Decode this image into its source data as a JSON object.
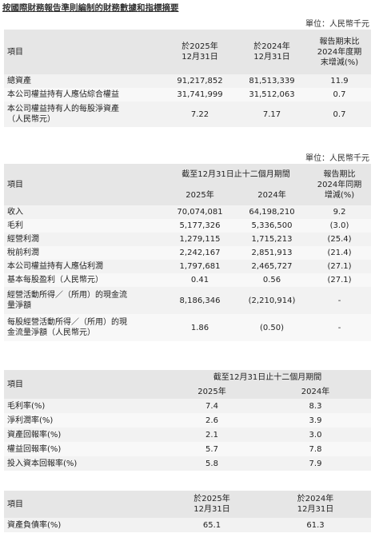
{
  "title": "按國際財務報告準則編制的財務數據和指標摘要",
  "table1": {
    "unit": "單位：人民幣千元",
    "headers": {
      "item": "項目",
      "col1_l1": "於2025年",
      "col1_l2": "12月31日",
      "col2_l1": "於2024年",
      "col2_l2": "12月31日",
      "col3_l1": "報告期末比",
      "col3_l2": "2024年度期",
      "col3_l3": "末增減(%)"
    },
    "rows": [
      {
        "label": "總資產",
        "v1": "91,217,852",
        "v2": "81,513,339",
        "v3": "11.9"
      },
      {
        "label": "本公司權益持有人應佔綜合權益",
        "v1": "31,741,999",
        "v2": "31,512,063",
        "v3": "0.7"
      },
      {
        "label_l1": "本公司權益持有人的每股淨資產",
        "label_l2": "（人民幣元）",
        "v1": "7.22",
        "v2": "7.17",
        "v3": "0.7"
      }
    ]
  },
  "table2": {
    "unit": "單位：人民幣千元",
    "headers": {
      "item": "項目",
      "period": "截至12月31日止十二個月期間",
      "y1": "2025年",
      "y2": "2024年",
      "chg_l1": "報告期比",
      "chg_l2": "2024年同期",
      "chg_l3": "增減(%)"
    },
    "rows": [
      {
        "label": "收入",
        "v1": "70,074,081",
        "v2": "64,198,210",
        "v3": "9.2"
      },
      {
        "label": "毛利",
        "v1": "5,177,326",
        "v2": "5,336,500",
        "v3": "(3.0)"
      },
      {
        "label": "經營利潤",
        "v1": "1,279,115",
        "v2": "1,715,213",
        "v3": "(25.4)"
      },
      {
        "label": "稅前利潤",
        "v1": "2,242,167",
        "v2": "2,851,913",
        "v3": "(21.4)"
      },
      {
        "label": "本公司權益持有人應佔利潤",
        "v1": "1,797,681",
        "v2": "2,465,727",
        "v3": "(27.1)"
      },
      {
        "label": "基本每股盈利（人民幣元）",
        "v1": "0.41",
        "v2": "0.56",
        "v3": "(27.1)"
      },
      {
        "label_l1": "經營活動所得／（所用）的現金流",
        "label_l2": "量淨額",
        "v1": "8,186,346",
        "v2": "(2,210,914)",
        "v3": "-"
      },
      {
        "label_l1": "每股經營活動所得／（所用）的現",
        "label_l2": "金流量淨額（人民幣元）",
        "v1": "1.86",
        "v2": "(0.50)",
        "v3": "-"
      }
    ]
  },
  "table3": {
    "headers": {
      "item": "項目",
      "period": "截至12月31日止十二個月期間",
      "y1": "2025年",
      "y2": "2024年"
    },
    "rows": [
      {
        "label": "毛利率(%)",
        "v1": "7.4",
        "v2": "8.3"
      },
      {
        "label": "淨利潤率(%)",
        "v1": "2.6",
        "v2": "3.9"
      },
      {
        "label": "資產回報率(%)",
        "v1": "2.1",
        "v2": "3.0"
      },
      {
        "label": "權益回報率(%)",
        "v1": "5.7",
        "v2": "7.8"
      },
      {
        "label": "投入資本回報率(%)",
        "v1": "5.8",
        "v2": "7.9"
      }
    ]
  },
  "table4": {
    "headers": {
      "item": "項目",
      "c1_l1": "於2025年",
      "c1_l2": "12月31日",
      "c2_l1": "於2024年",
      "c2_l2": "12月31日"
    },
    "rows": [
      {
        "label": "資產負債率(%)",
        "v1": "65.1",
        "v2": "61.3"
      }
    ]
  }
}
